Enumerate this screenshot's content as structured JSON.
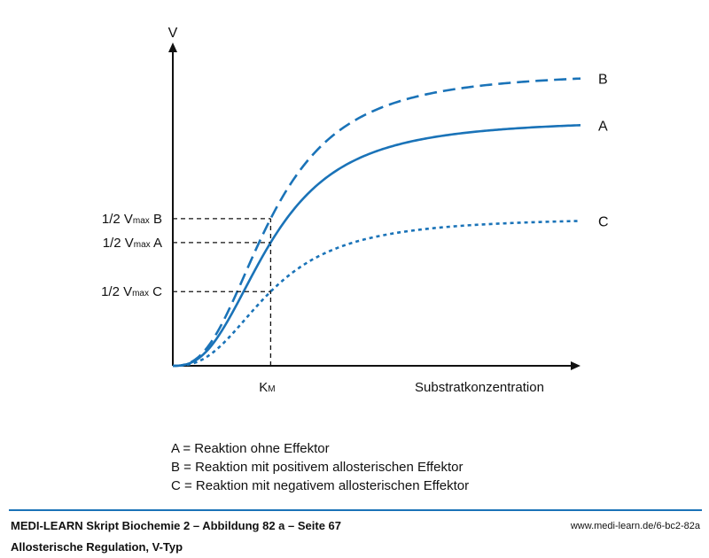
{
  "chart_data": {
    "type": "line",
    "xlabel": "Substratkonzentration",
    "ylabel": "V",
    "xlim": [
      0,
      1
    ],
    "ylim": [
      0,
      1
    ],
    "km_label": "K",
    "km_sub": "M",
    "km_x": 0.24,
    "series": [
      {
        "name": "A",
        "style": "solid",
        "color": "#1a73b8",
        "vmax": 0.98,
        "half_label": "1/2 V",
        "half_sub": "max",
        "half_suffix": " A"
      },
      {
        "name": "B",
        "style": "dashed",
        "color": "#1a73b8",
        "vmax": 1.17,
        "half_label": "1/2 V",
        "half_sub": "max",
        "half_suffix": " B"
      },
      {
        "name": "C",
        "style": "dotted",
        "color": "#1a73b8",
        "vmax": 0.59,
        "half_label": "1/2 V",
        "half_sub": "max",
        "half_suffix": " C"
      }
    ]
  },
  "legend": {
    "line_a": "A = Reaktion ohne Effektor",
    "line_b": "B = Reaktion mit positivem allosterischen Effektor",
    "line_c": "C = Reaktion mit negativem allosterischen Effektor"
  },
  "footer": {
    "title": "MEDI-LEARN Skript Biochemie 2 – Abbildung 82 a – Seite 67",
    "subtitle": "Allosterische Regulation, V-Typ",
    "url": "www.medi-learn.de/6-bc2-82a"
  }
}
